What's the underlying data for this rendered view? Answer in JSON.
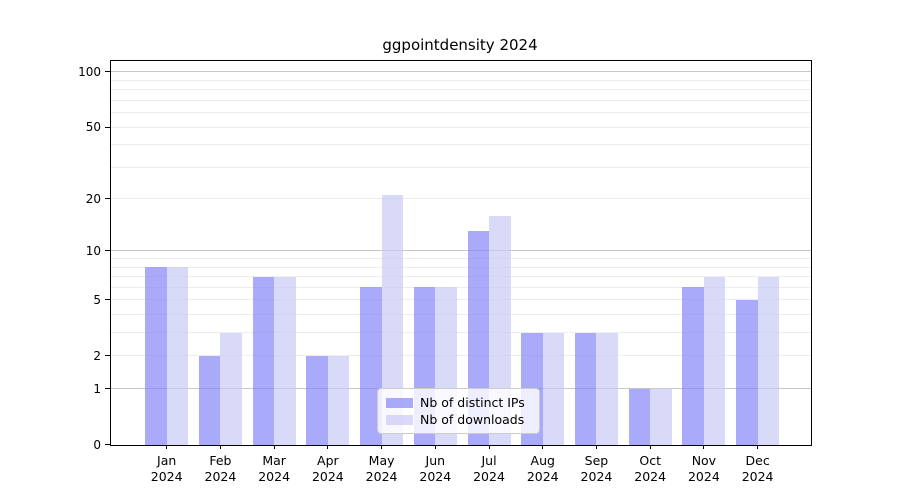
{
  "title": "ggpointdensity 2024",
  "chart_data": {
    "type": "bar",
    "title": "ggpointdensity 2024",
    "categories": [
      "Jan",
      "Feb",
      "Mar",
      "Apr",
      "May",
      "Jun",
      "Jul",
      "Aug",
      "Sep",
      "Oct",
      "Nov",
      "Dec"
    ],
    "category_year": "2024",
    "series": [
      {
        "name": "Nb of distinct IPs",
        "color": "rgba(134,134,248,0.7)",
        "values": [
          8,
          2,
          7,
          2,
          6,
          6,
          13,
          3,
          3,
          1,
          6,
          5
        ]
      },
      {
        "name": "Nb of downloads",
        "color": "rgba(201,201,245,0.7)",
        "values": [
          8,
          3,
          7,
          2,
          21,
          6,
          16,
          3,
          3,
          1,
          7,
          7
        ]
      }
    ],
    "y_axis": {
      "scale": "log10(1+value)",
      "ticks": [
        {
          "label": "100",
          "value": 100
        },
        {
          "label": "50",
          "value": 50
        },
        {
          "label": "20",
          "value": 20
        },
        {
          "label": "10",
          "value": 10
        },
        {
          "label": "5",
          "value": 5
        },
        {
          "label": "2",
          "value": 2
        },
        {
          "label": "1",
          "value": 1
        },
        {
          "label": "0",
          "value": 0
        }
      ],
      "range_top_value": 115
    },
    "grid": {
      "minor_values": [
        2,
        3,
        4,
        5,
        6,
        7,
        8,
        9,
        20,
        30,
        40,
        50,
        60,
        70,
        80,
        90
      ],
      "major_values": [
        1,
        10,
        100
      ],
      "minor_color": "#ededed",
      "major_color": "#c8c8c8"
    },
    "legend_position": "bottom-center",
    "xlabel": "",
    "ylabel": ""
  },
  "colors": {
    "background": "#ffffff",
    "axis": "#000000",
    "text": "#000000"
  }
}
